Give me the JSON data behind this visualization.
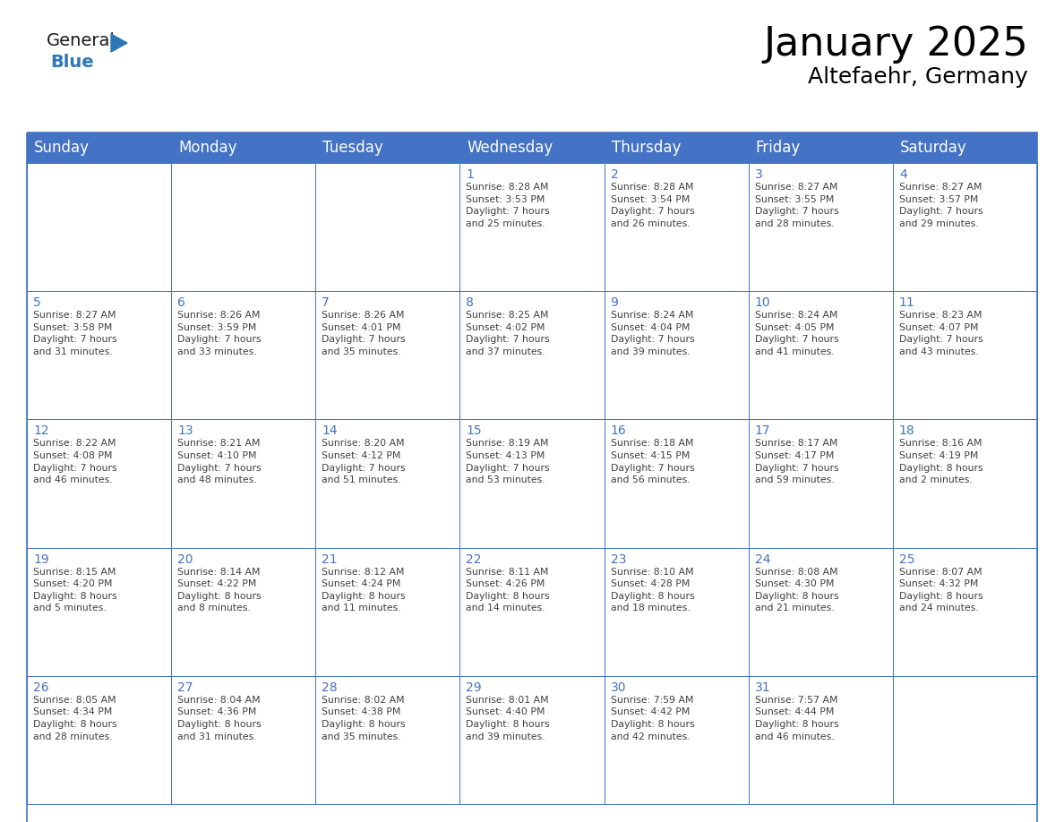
{
  "title": "January 2025",
  "subtitle": "Altefaehr, Germany",
  "header_color": "#4472C4",
  "header_text_color": "#FFFFFF",
  "cell_bg_color": "#FFFFFF",
  "grid_line_color": "#4472C4",
  "day_number_color": "#4472C4",
  "cell_text_color": "#404040",
  "days_of_week": [
    "Sunday",
    "Monday",
    "Tuesday",
    "Wednesday",
    "Thursday",
    "Friday",
    "Saturday"
  ],
  "title_fontsize": 32,
  "subtitle_fontsize": 18,
  "header_fontsize": 12,
  "day_num_fontsize": 10,
  "cell_text_fontsize": 7.8,
  "logo_general_color": "#1a1a1a",
  "logo_blue_color": "#2E75B6",
  "calendar": [
    [
      {
        "day": "",
        "text": ""
      },
      {
        "day": "",
        "text": ""
      },
      {
        "day": "",
        "text": ""
      },
      {
        "day": "1",
        "text": "Sunrise: 8:28 AM\nSunset: 3:53 PM\nDaylight: 7 hours\nand 25 minutes."
      },
      {
        "day": "2",
        "text": "Sunrise: 8:28 AM\nSunset: 3:54 PM\nDaylight: 7 hours\nand 26 minutes."
      },
      {
        "day": "3",
        "text": "Sunrise: 8:27 AM\nSunset: 3:55 PM\nDaylight: 7 hours\nand 28 minutes."
      },
      {
        "day": "4",
        "text": "Sunrise: 8:27 AM\nSunset: 3:57 PM\nDaylight: 7 hours\nand 29 minutes."
      }
    ],
    [
      {
        "day": "5",
        "text": "Sunrise: 8:27 AM\nSunset: 3:58 PM\nDaylight: 7 hours\nand 31 minutes."
      },
      {
        "day": "6",
        "text": "Sunrise: 8:26 AM\nSunset: 3:59 PM\nDaylight: 7 hours\nand 33 minutes."
      },
      {
        "day": "7",
        "text": "Sunrise: 8:26 AM\nSunset: 4:01 PM\nDaylight: 7 hours\nand 35 minutes."
      },
      {
        "day": "8",
        "text": "Sunrise: 8:25 AM\nSunset: 4:02 PM\nDaylight: 7 hours\nand 37 minutes."
      },
      {
        "day": "9",
        "text": "Sunrise: 8:24 AM\nSunset: 4:04 PM\nDaylight: 7 hours\nand 39 minutes."
      },
      {
        "day": "10",
        "text": "Sunrise: 8:24 AM\nSunset: 4:05 PM\nDaylight: 7 hours\nand 41 minutes."
      },
      {
        "day": "11",
        "text": "Sunrise: 8:23 AM\nSunset: 4:07 PM\nDaylight: 7 hours\nand 43 minutes."
      }
    ],
    [
      {
        "day": "12",
        "text": "Sunrise: 8:22 AM\nSunset: 4:08 PM\nDaylight: 7 hours\nand 46 minutes."
      },
      {
        "day": "13",
        "text": "Sunrise: 8:21 AM\nSunset: 4:10 PM\nDaylight: 7 hours\nand 48 minutes."
      },
      {
        "day": "14",
        "text": "Sunrise: 8:20 AM\nSunset: 4:12 PM\nDaylight: 7 hours\nand 51 minutes."
      },
      {
        "day": "15",
        "text": "Sunrise: 8:19 AM\nSunset: 4:13 PM\nDaylight: 7 hours\nand 53 minutes."
      },
      {
        "day": "16",
        "text": "Sunrise: 8:18 AM\nSunset: 4:15 PM\nDaylight: 7 hours\nand 56 minutes."
      },
      {
        "day": "17",
        "text": "Sunrise: 8:17 AM\nSunset: 4:17 PM\nDaylight: 7 hours\nand 59 minutes."
      },
      {
        "day": "18",
        "text": "Sunrise: 8:16 AM\nSunset: 4:19 PM\nDaylight: 8 hours\nand 2 minutes."
      }
    ],
    [
      {
        "day": "19",
        "text": "Sunrise: 8:15 AM\nSunset: 4:20 PM\nDaylight: 8 hours\nand 5 minutes."
      },
      {
        "day": "20",
        "text": "Sunrise: 8:14 AM\nSunset: 4:22 PM\nDaylight: 8 hours\nand 8 minutes."
      },
      {
        "day": "21",
        "text": "Sunrise: 8:12 AM\nSunset: 4:24 PM\nDaylight: 8 hours\nand 11 minutes."
      },
      {
        "day": "22",
        "text": "Sunrise: 8:11 AM\nSunset: 4:26 PM\nDaylight: 8 hours\nand 14 minutes."
      },
      {
        "day": "23",
        "text": "Sunrise: 8:10 AM\nSunset: 4:28 PM\nDaylight: 8 hours\nand 18 minutes."
      },
      {
        "day": "24",
        "text": "Sunrise: 8:08 AM\nSunset: 4:30 PM\nDaylight: 8 hours\nand 21 minutes."
      },
      {
        "day": "25",
        "text": "Sunrise: 8:07 AM\nSunset: 4:32 PM\nDaylight: 8 hours\nand 24 minutes."
      }
    ],
    [
      {
        "day": "26",
        "text": "Sunrise: 8:05 AM\nSunset: 4:34 PM\nDaylight: 8 hours\nand 28 minutes."
      },
      {
        "day": "27",
        "text": "Sunrise: 8:04 AM\nSunset: 4:36 PM\nDaylight: 8 hours\nand 31 minutes."
      },
      {
        "day": "28",
        "text": "Sunrise: 8:02 AM\nSunset: 4:38 PM\nDaylight: 8 hours\nand 35 minutes."
      },
      {
        "day": "29",
        "text": "Sunrise: 8:01 AM\nSunset: 4:40 PM\nDaylight: 8 hours\nand 39 minutes."
      },
      {
        "day": "30",
        "text": "Sunrise: 7:59 AM\nSunset: 4:42 PM\nDaylight: 8 hours\nand 42 minutes."
      },
      {
        "day": "31",
        "text": "Sunrise: 7:57 AM\nSunset: 4:44 PM\nDaylight: 8 hours\nand 46 minutes."
      },
      {
        "day": "",
        "text": ""
      }
    ]
  ]
}
